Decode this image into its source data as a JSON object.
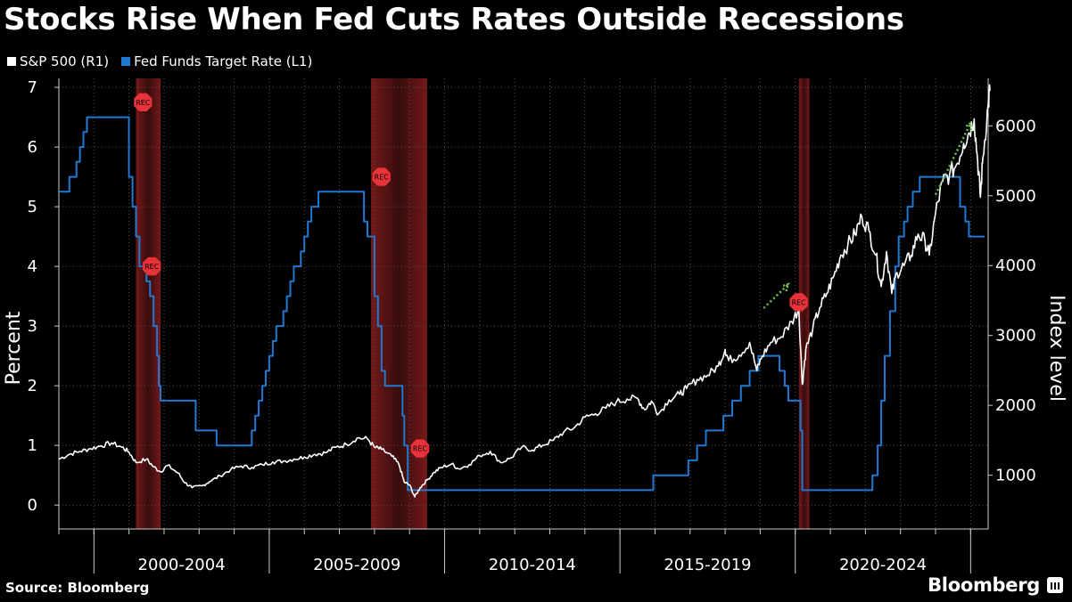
{
  "title": "Stocks Rise When Fed Cuts Rates Outside Recessions",
  "legend": [
    {
      "label": "S&P 500 (R1)",
      "color": "#ffffff"
    },
    {
      "label": "Fed Funds Target Rate (L1)",
      "color": "#1f78d1"
    }
  ],
  "source": "Source: Bloomberg",
  "brand": "Bloomberg",
  "chart_data": {
    "type": "line",
    "title": "Stocks Rise When Fed Cuts Rates Outside Recessions",
    "x_range": [
      1999.0,
      2025.5
    ],
    "x_period_labels": [
      "2000-2004",
      "2005-2009",
      "2010-2014",
      "2015-2019",
      "2020-2024"
    ],
    "left_axis": {
      "label": "Percent",
      "range": [
        -0.4,
        7.15
      ],
      "ticks": [
        0,
        1,
        2,
        3,
        4,
        5,
        6,
        7
      ]
    },
    "right_axis": {
      "label": "Index level",
      "range": [
        230,
        6680
      ],
      "ticks": [
        1000,
        2000,
        3000,
        4000,
        5000,
        6000
      ]
    },
    "recessions": [
      [
        2001.2,
        2001.9
      ],
      [
        2007.9,
        2009.5
      ],
      [
        2020.1,
        2020.4
      ]
    ],
    "recession_marker_label": "REC",
    "recession_markers": [
      {
        "date": 2001.4,
        "value": 6.75
      },
      {
        "date": 2001.65,
        "value": 4.0
      },
      {
        "date": 2008.2,
        "value": 5.5
      },
      {
        "date": 2009.3,
        "value": 0.95
      },
      {
        "date": 2020.1,
        "value": 3.4
      }
    ],
    "rate_cut_arrows": [
      {
        "from": [
          2019.1,
          3.3
        ],
        "to": [
          2019.8,
          3.7
        ]
      },
      {
        "from": [
          2024.0,
          5.2
        ],
        "to": [
          2025.0,
          6.4
        ]
      }
    ],
    "series": [
      {
        "name": "Fed Funds Target Rate (L1)",
        "axis": "left",
        "color": "#1f78d1",
        "points": [
          [
            1999.0,
            5.25
          ],
          [
            1999.3,
            5.25
          ],
          [
            1999.3,
            5.5
          ],
          [
            1999.5,
            5.5
          ],
          [
            1999.5,
            5.75
          ],
          [
            1999.6,
            5.75
          ],
          [
            1999.6,
            6.0
          ],
          [
            1999.7,
            6.0
          ],
          [
            1999.7,
            6.25
          ],
          [
            1999.8,
            6.25
          ],
          [
            1999.8,
            6.5
          ],
          [
            2000.3,
            6.5
          ],
          [
            2000.3,
            6.5
          ],
          [
            2001.0,
            6.5
          ],
          [
            2001.0,
            5.5
          ],
          [
            2001.1,
            5.5
          ],
          [
            2001.1,
            5.0
          ],
          [
            2001.2,
            5.0
          ],
          [
            2001.2,
            4.5
          ],
          [
            2001.3,
            4.5
          ],
          [
            2001.3,
            4.0
          ],
          [
            2001.5,
            4.0
          ],
          [
            2001.5,
            3.75
          ],
          [
            2001.6,
            3.75
          ],
          [
            2001.6,
            3.5
          ],
          [
            2001.7,
            3.5
          ],
          [
            2001.7,
            3.0
          ],
          [
            2001.8,
            3.0
          ],
          [
            2001.8,
            2.5
          ],
          [
            2001.85,
            2.5
          ],
          [
            2001.85,
            2.0
          ],
          [
            2001.9,
            2.0
          ],
          [
            2001.9,
            1.75
          ],
          [
            2002.9,
            1.75
          ],
          [
            2002.9,
            1.25
          ],
          [
            2003.5,
            1.25
          ],
          [
            2003.5,
            1.0
          ],
          [
            2004.5,
            1.0
          ],
          [
            2004.5,
            1.25
          ],
          [
            2004.6,
            1.25
          ],
          [
            2004.6,
            1.5
          ],
          [
            2004.7,
            1.5
          ],
          [
            2004.7,
            1.75
          ],
          [
            2004.8,
            1.75
          ],
          [
            2004.8,
            2.0
          ],
          [
            2004.9,
            2.0
          ],
          [
            2004.9,
            2.25
          ],
          [
            2005.0,
            2.25
          ],
          [
            2005.0,
            2.5
          ],
          [
            2005.1,
            2.5
          ],
          [
            2005.1,
            2.75
          ],
          [
            2005.2,
            2.75
          ],
          [
            2005.2,
            3.0
          ],
          [
            2005.4,
            3.0
          ],
          [
            2005.4,
            3.25
          ],
          [
            2005.5,
            3.25
          ],
          [
            2005.5,
            3.5
          ],
          [
            2005.6,
            3.5
          ],
          [
            2005.6,
            3.75
          ],
          [
            2005.7,
            3.75
          ],
          [
            2005.7,
            4.0
          ],
          [
            2005.9,
            4.0
          ],
          [
            2005.9,
            4.25
          ],
          [
            2006.0,
            4.25
          ],
          [
            2006.0,
            4.5
          ],
          [
            2006.1,
            4.5
          ],
          [
            2006.1,
            4.75
          ],
          [
            2006.2,
            4.75
          ],
          [
            2006.2,
            5.0
          ],
          [
            2006.4,
            5.0
          ],
          [
            2006.4,
            5.25
          ],
          [
            2007.7,
            5.25
          ],
          [
            2007.7,
            4.75
          ],
          [
            2007.8,
            4.75
          ],
          [
            2007.8,
            4.5
          ],
          [
            2008.0,
            4.5
          ],
          [
            2008.0,
            3.5
          ],
          [
            2008.1,
            3.5
          ],
          [
            2008.1,
            3.0
          ],
          [
            2008.2,
            3.0
          ],
          [
            2008.2,
            2.25
          ],
          [
            2008.3,
            2.25
          ],
          [
            2008.3,
            2.0
          ],
          [
            2008.8,
            2.0
          ],
          [
            2008.8,
            1.5
          ],
          [
            2008.85,
            1.5
          ],
          [
            2008.85,
            1.0
          ],
          [
            2008.95,
            1.0
          ],
          [
            2008.95,
            0.25
          ],
          [
            2015.95,
            0.25
          ],
          [
            2015.95,
            0.5
          ],
          [
            2016.95,
            0.5
          ],
          [
            2016.95,
            0.75
          ],
          [
            2017.2,
            0.75
          ],
          [
            2017.2,
            1.0
          ],
          [
            2017.45,
            1.0
          ],
          [
            2017.45,
            1.25
          ],
          [
            2017.95,
            1.25
          ],
          [
            2017.95,
            1.5
          ],
          [
            2018.2,
            1.5
          ],
          [
            2018.2,
            1.75
          ],
          [
            2018.45,
            1.75
          ],
          [
            2018.45,
            2.0
          ],
          [
            2018.7,
            2.0
          ],
          [
            2018.7,
            2.25
          ],
          [
            2018.95,
            2.25
          ],
          [
            2018.95,
            2.5
          ],
          [
            2019.55,
            2.5
          ],
          [
            2019.55,
            2.25
          ],
          [
            2019.7,
            2.25
          ],
          [
            2019.7,
            2.0
          ],
          [
            2019.8,
            2.0
          ],
          [
            2019.8,
            1.75
          ],
          [
            2020.15,
            1.75
          ],
          [
            2020.15,
            1.25
          ],
          [
            2020.2,
            1.25
          ],
          [
            2020.2,
            0.25
          ],
          [
            2022.2,
            0.25
          ],
          [
            2022.2,
            0.5
          ],
          [
            2022.35,
            0.5
          ],
          [
            2022.35,
            1.0
          ],
          [
            2022.45,
            1.0
          ],
          [
            2022.45,
            1.75
          ],
          [
            2022.55,
            1.75
          ],
          [
            2022.55,
            2.5
          ],
          [
            2022.7,
            2.5
          ],
          [
            2022.7,
            3.25
          ],
          [
            2022.85,
            3.25
          ],
          [
            2022.85,
            4.0
          ],
          [
            2022.95,
            4.0
          ],
          [
            2022.95,
            4.5
          ],
          [
            2023.1,
            4.5
          ],
          [
            2023.1,
            4.75
          ],
          [
            2023.2,
            4.75
          ],
          [
            2023.2,
            5.0
          ],
          [
            2023.35,
            5.0
          ],
          [
            2023.35,
            5.25
          ],
          [
            2023.55,
            5.25
          ],
          [
            2023.55,
            5.5
          ],
          [
            2024.7,
            5.5
          ],
          [
            2024.7,
            5.0
          ],
          [
            2024.85,
            5.0
          ],
          [
            2024.85,
            4.75
          ],
          [
            2024.95,
            4.75
          ],
          [
            2024.95,
            4.5
          ],
          [
            2025.4,
            4.5
          ]
        ]
      },
      {
        "name": "S&P 500 (R1)",
        "axis": "right",
        "color": "#ffffff",
        "points": [
          [
            1999.0,
            1230
          ],
          [
            1999.3,
            1300
          ],
          [
            1999.6,
            1340
          ],
          [
            1999.9,
            1380
          ],
          [
            2000.2,
            1420
          ],
          [
            2000.5,
            1460
          ],
          [
            2000.8,
            1400
          ],
          [
            2001.0,
            1330
          ],
          [
            2001.2,
            1180
          ],
          [
            2001.5,
            1230
          ],
          [
            2001.7,
            1120
          ],
          [
            2001.9,
            1050
          ],
          [
            2002.1,
            1140
          ],
          [
            2002.4,
            1030
          ],
          [
            2002.6,
            890
          ],
          [
            2002.8,
            820
          ],
          [
            2003.1,
            850
          ],
          [
            2003.3,
            910
          ],
          [
            2003.6,
            990
          ],
          [
            2003.9,
            1080
          ],
          [
            2004.2,
            1130
          ],
          [
            2004.5,
            1110
          ],
          [
            2004.8,
            1150
          ],
          [
            2005.1,
            1190
          ],
          [
            2005.4,
            1200
          ],
          [
            2005.7,
            1230
          ],
          [
            2006.0,
            1260
          ],
          [
            2006.3,
            1300
          ],
          [
            2006.6,
            1320
          ],
          [
            2006.9,
            1400
          ],
          [
            2007.2,
            1440
          ],
          [
            2007.5,
            1530
          ],
          [
            2007.8,
            1520
          ],
          [
            2008.0,
            1400
          ],
          [
            2008.2,
            1370
          ],
          [
            2008.5,
            1270
          ],
          [
            2008.7,
            1150
          ],
          [
            2008.85,
            900
          ],
          [
            2009.0,
            860
          ],
          [
            2009.15,
            690
          ],
          [
            2009.3,
            820
          ],
          [
            2009.5,
            930
          ],
          [
            2009.7,
            1040
          ],
          [
            2009.9,
            1110
          ],
          [
            2010.2,
            1160
          ],
          [
            2010.4,
            1090
          ],
          [
            2010.7,
            1150
          ],
          [
            2011.0,
            1280
          ],
          [
            2011.3,
            1340
          ],
          [
            2011.6,
            1180
          ],
          [
            2011.9,
            1250
          ],
          [
            2012.2,
            1400
          ],
          [
            2012.5,
            1360
          ],
          [
            2012.8,
            1430
          ],
          [
            2013.1,
            1500
          ],
          [
            2013.4,
            1620
          ],
          [
            2013.7,
            1680
          ],
          [
            2014.0,
            1830
          ],
          [
            2014.3,
            1880
          ],
          [
            2014.6,
            1960
          ],
          [
            2014.9,
            2050
          ],
          [
            2015.2,
            2090
          ],
          [
            2015.5,
            2100
          ],
          [
            2015.7,
            1940
          ],
          [
            2015.9,
            2060
          ],
          [
            2016.1,
            1880
          ],
          [
            2016.4,
            2080
          ],
          [
            2016.7,
            2160
          ],
          [
            2016.9,
            2240
          ],
          [
            2017.2,
            2370
          ],
          [
            2017.5,
            2430
          ],
          [
            2017.8,
            2560
          ],
          [
            2018.0,
            2800
          ],
          [
            2018.1,
            2640
          ],
          [
            2018.4,
            2720
          ],
          [
            2018.7,
            2900
          ],
          [
            2018.9,
            2500
          ],
          [
            2019.05,
            2700
          ],
          [
            2019.3,
            2900
          ],
          [
            2019.6,
            2980
          ],
          [
            2019.9,
            3200
          ],
          [
            2020.1,
            3380
          ],
          [
            2020.2,
            2300
          ],
          [
            2020.3,
            2800
          ],
          [
            2020.5,
            3100
          ],
          [
            2020.7,
            3400
          ],
          [
            2020.9,
            3600
          ],
          [
            2021.1,
            3850
          ],
          [
            2021.3,
            4150
          ],
          [
            2021.5,
            4300
          ],
          [
            2021.7,
            4450
          ],
          [
            2021.9,
            4700
          ],
          [
            2022.1,
            4500
          ],
          [
            2022.3,
            4150
          ],
          [
            2022.45,
            3700
          ],
          [
            2022.6,
            4200
          ],
          [
            2022.75,
            3600
          ],
          [
            2022.9,
            3900
          ],
          [
            2023.1,
            4000
          ],
          [
            2023.3,
            4150
          ],
          [
            2023.5,
            4450
          ],
          [
            2023.7,
            4350
          ],
          [
            2023.82,
            4150
          ],
          [
            2024.0,
            4750
          ],
          [
            2024.2,
            5200
          ],
          [
            2024.4,
            5300
          ],
          [
            2024.6,
            5450
          ],
          [
            2024.8,
            5750
          ],
          [
            2024.95,
            5900
          ],
          [
            2025.1,
            6100
          ],
          [
            2025.2,
            5500
          ],
          [
            2025.28,
            4980
          ],
          [
            2025.35,
            5550
          ],
          [
            2025.5,
            6300
          ],
          [
            2025.55,
            6500
          ]
        ]
      }
    ]
  }
}
